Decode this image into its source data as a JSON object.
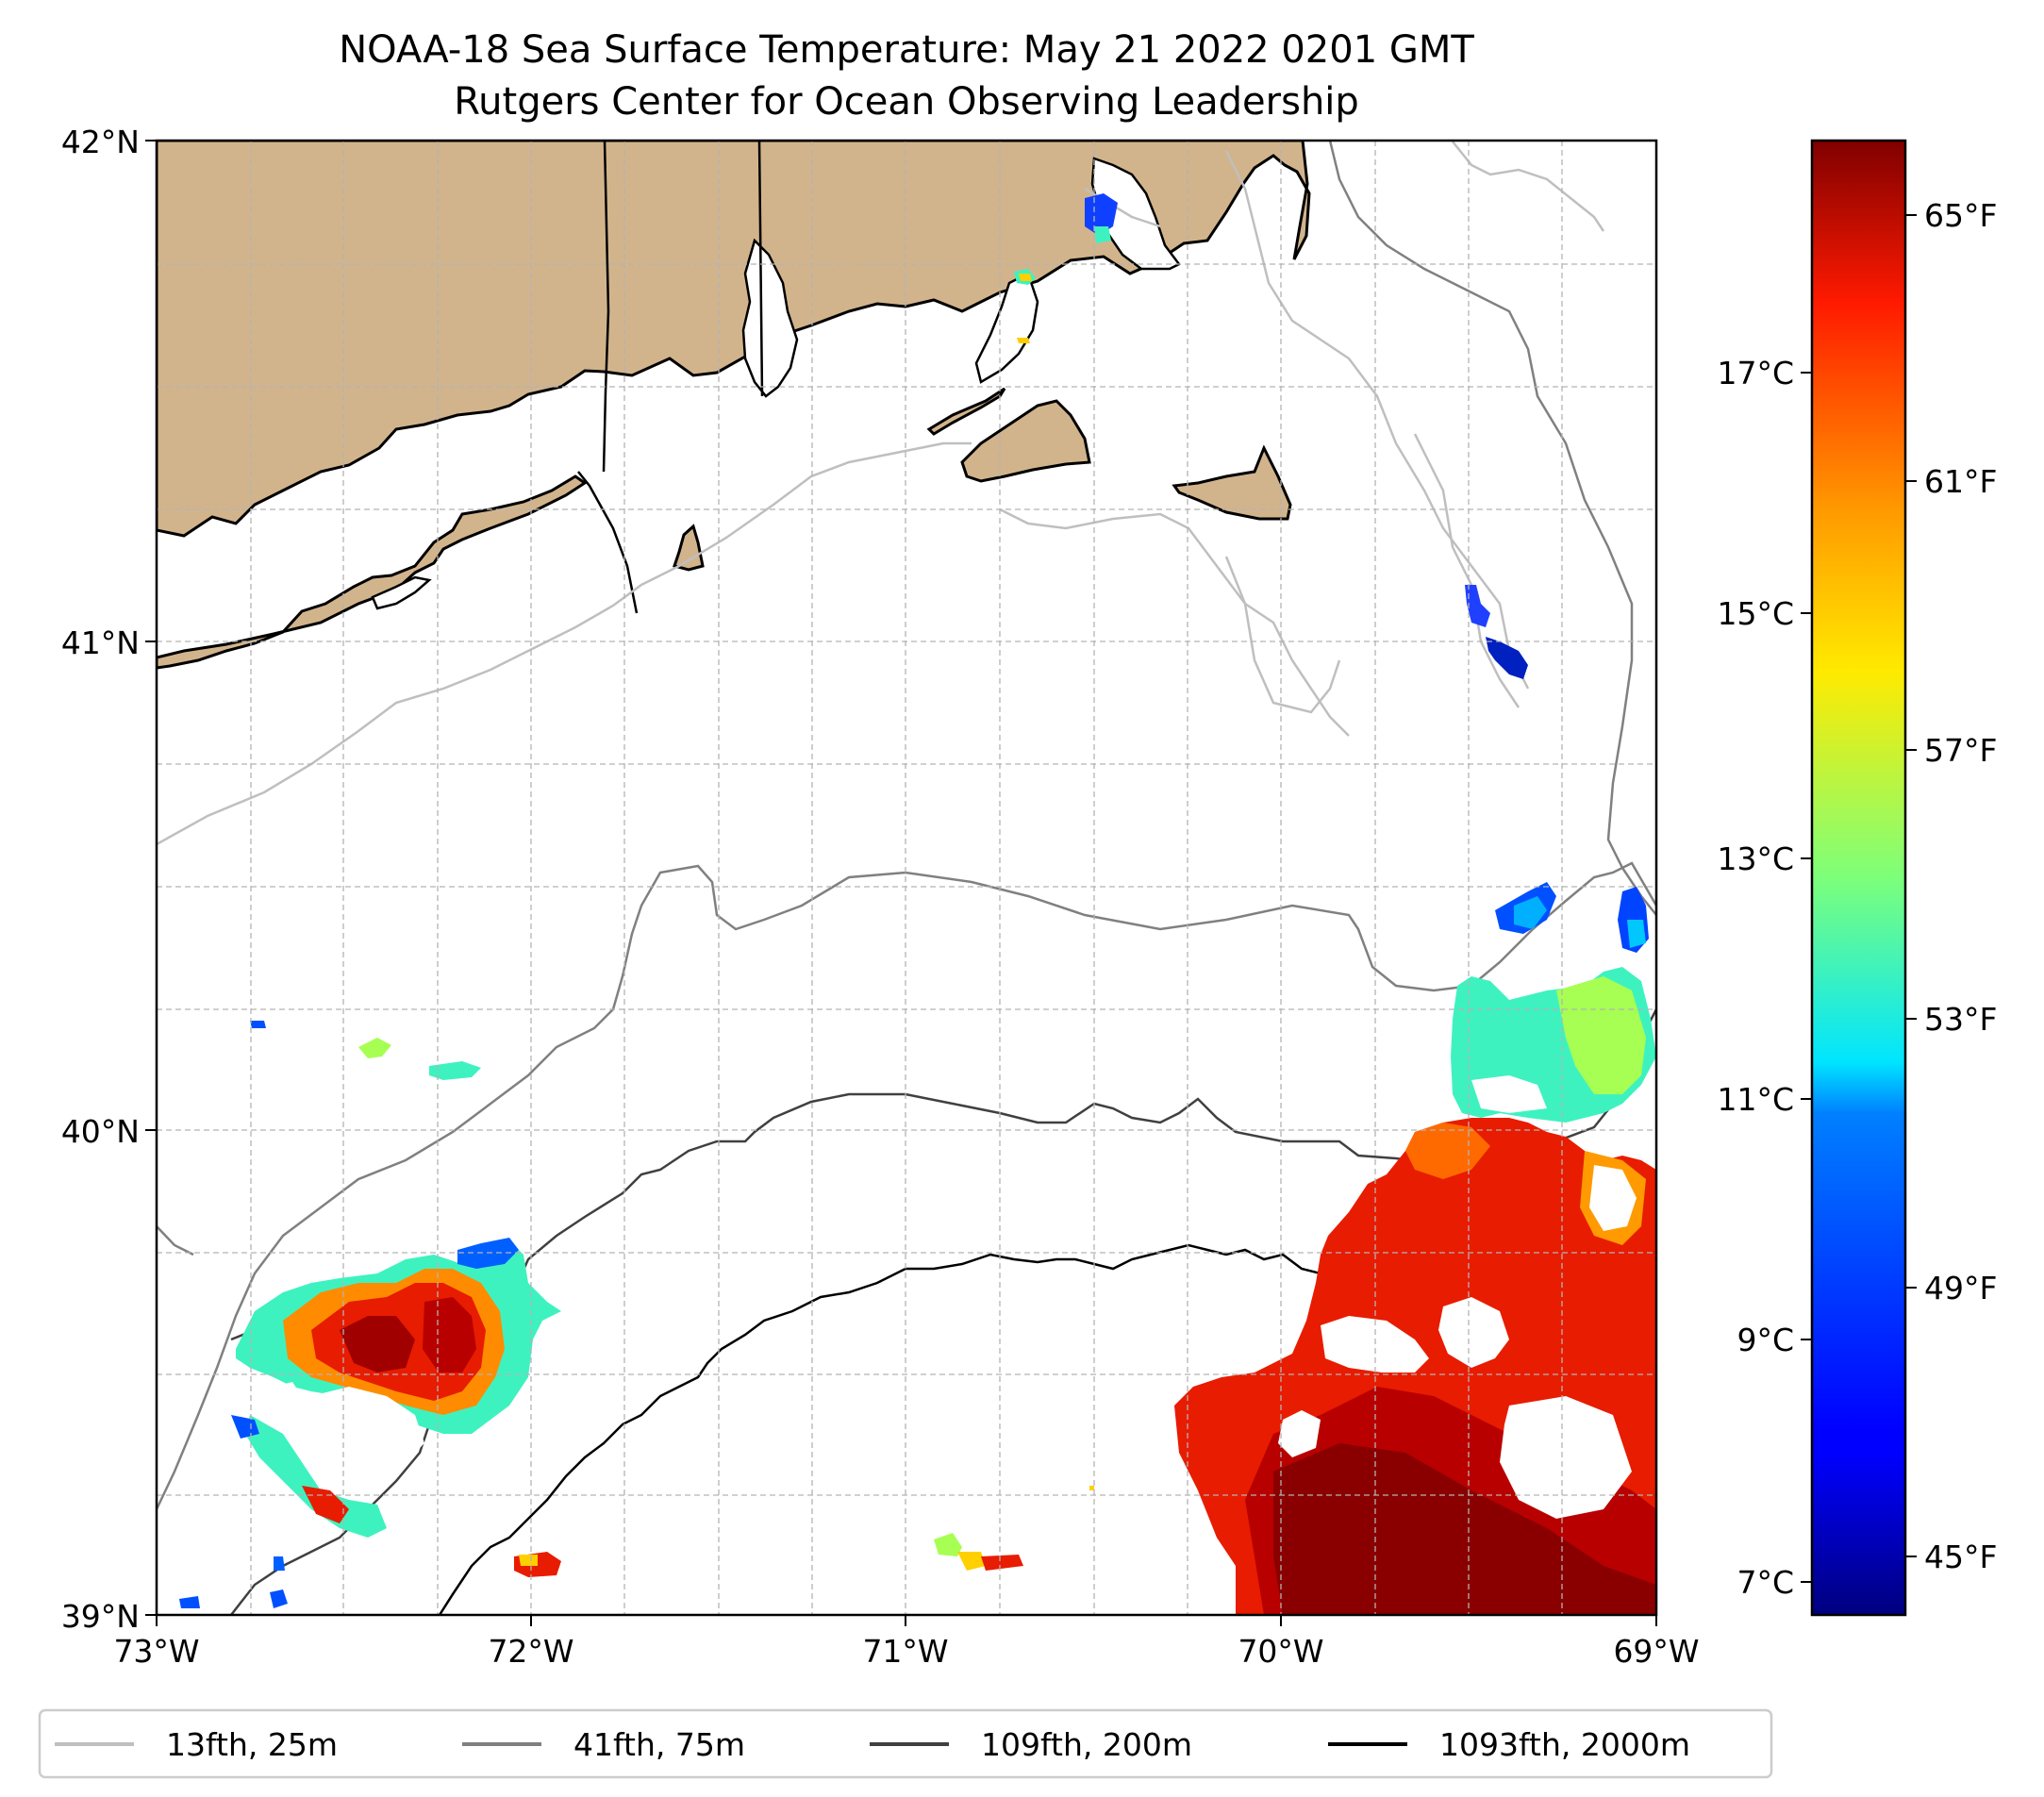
{
  "title": {
    "line1": "NOAA-18 Sea Surface Temperature: May 21 2022 0201 GMT",
    "line2": "Rutgers Center for Ocean Observing Leadership"
  },
  "map": {
    "lat_range": [
      39,
      42
    ],
    "lon_range": [
      -73,
      -69
    ],
    "lat_ticks": [
      "42°N",
      "41°N",
      "40°N",
      "39°N"
    ],
    "lon_ticks": [
      "73°W",
      "72°W",
      "71°W",
      "70°W",
      "69°W"
    ]
  },
  "colorbar": {
    "colormap": "jet",
    "celsius_ticks": [
      "17°C",
      "15°C",
      "13°C",
      "11°C",
      "9°C",
      "7°C"
    ],
    "fahrenheit_ticks": [
      "65°F",
      "61°F",
      "57°F",
      "53°F",
      "49°F",
      "45°F"
    ],
    "range_c": [
      6.7,
      19
    ]
  },
  "legend": {
    "items": [
      {
        "label": "13fth, 25m",
        "color": "#bfbfbf"
      },
      {
        "label": "41fth, 75m",
        "color": "#808080"
      },
      {
        "label": "109fth, 200m",
        "color": "#404040"
      },
      {
        "label": "1093fth, 2000m",
        "color": "#000000"
      }
    ]
  },
  "colors": {
    "land": "#d2b48c",
    "grid": "#b3b3b3"
  }
}
